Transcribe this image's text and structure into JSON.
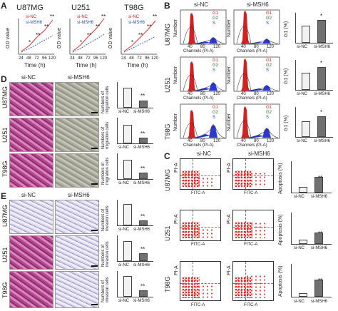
{
  "panel_A": {
    "letter": "A",
    "charts": [
      {
        "title": "U87MG",
        "star_a": "*",
        "star_b": "**",
        "star_c": "**",
        "star_d": "**"
      },
      {
        "title": "U251",
        "star_a": "*",
        "star_b": "**",
        "star_c": "**",
        "star_d": "**"
      },
      {
        "title": "T98G",
        "star_a": "*",
        "star_b": "**",
        "star_c": "**",
        "star_d": "**"
      }
    ],
    "legend_nc": "si-NC",
    "legend_msh6": "si-MSH6",
    "ylabel": "OD value",
    "xlabel": "Time (h)",
    "ticks_y": [
      "0.5",
      "1",
      "1.5",
      "2"
    ],
    "ticks_x": [
      "24",
      "48",
      "72",
      "96",
      "120"
    ]
  },
  "panel_B": {
    "letter": "B",
    "col_nc": "si-NC",
    "col_msh6": "si-MSH6",
    "rows": [
      "U87MG",
      "U251",
      "T98G"
    ],
    "hist_ylabel": "Number",
    "hist_xlabel": "Channels (PI-A)",
    "legend": [
      "G1",
      "G2",
      "S"
    ],
    "hist_ticks": [
      "40",
      "80",
      "120"
    ],
    "bar_ylabel": "G1 (%)",
    "bar_labels": [
      "si-NC",
      "si-MSH6"
    ],
    "star": "*"
  },
  "panel_C": {
    "letter": "C",
    "col_nc": "si-NC",
    "col_msh6": "si-MSH6",
    "rows": [
      "U87MG",
      "U251",
      "T98G"
    ],
    "ylabel": "PI-A",
    "xlabel": "FITC-A",
    "bar_ylabel": "Apoptosis (%)",
    "bar_labels": [
      "si-NC",
      "si-MSH6"
    ],
    "star": "**"
  },
  "panel_D": {
    "letter": "D",
    "col_nc": "si-NC",
    "col_msh6": "si-MSH6",
    "rows": [
      "U87MG",
      "U251",
      "T98G"
    ],
    "bar_ylabel": "Numbers of migration cells",
    "bar_ticks": [
      "0",
      "200",
      "400",
      "600"
    ],
    "bar_labels": [
      "si-NC",
      "si-MSH6"
    ],
    "star": "**"
  },
  "panel_E": {
    "letter": "E",
    "col_nc": "si-NC",
    "col_msh6": "si-MSH6",
    "rows": [
      "U87MG",
      "U251",
      "T98G"
    ],
    "bar_ylabel": "Numbers of invasion cells",
    "bar_ticks": [
      "0",
      "200",
      "400",
      "600"
    ],
    "bar_labels": [
      "si-NC",
      "si-MSH6"
    ],
    "star": "**"
  },
  "colors": {
    "nc": "#e03030",
    "msh6": "#3a60c8",
    "g1": "#d42020",
    "g2": "#2a6a2a",
    "s": "#2a3ad0",
    "bar_nc": "#f2f2f2",
    "bar_msh6": "#707070"
  }
}
